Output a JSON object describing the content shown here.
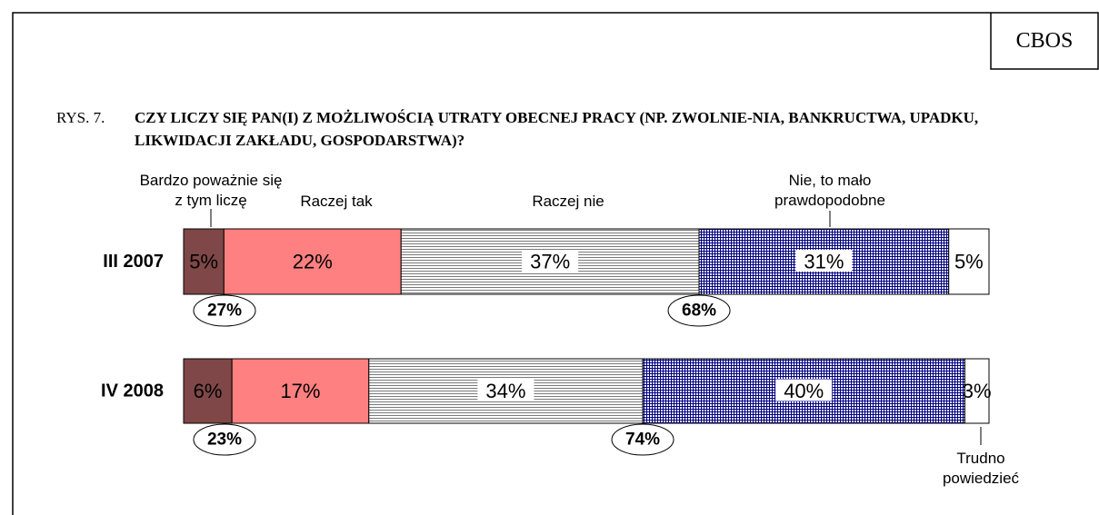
{
  "source": "CBOS",
  "chart_data": {
    "type": "stacked-bar-horizontal",
    "figure_label": "RYS. 7.",
    "title": "CZY LICZY SIĘ PAN(I) Z MOŻLIWOŚCIĄ UTRATY OBECNEJ PRACY (NP. ZWOLNIE-NIA, BANKRUCTWA, UPADKU, LIKWIDACJI ZAKŁADU, GOSPODARSTWA)?",
    "categories": [
      "III 2007",
      "IV 2008"
    ],
    "xlim": [
      0,
      100
    ],
    "series": [
      {
        "name": "Bardzo poważnie się z tym liczę",
        "color": "#7f4747",
        "values": [
          5,
          6
        ],
        "value_labels": [
          "5%",
          "6%"
        ]
      },
      {
        "name": "Raczej tak",
        "color": "#ff8080",
        "values": [
          22,
          17
        ],
        "value_labels": [
          "22%",
          "17%"
        ]
      },
      {
        "name": "Raczej nie",
        "color": "#808080",
        "pattern": "horizontal-lines",
        "values": [
          37,
          34
        ],
        "value_labels": [
          "37%",
          "34%"
        ]
      },
      {
        "name": "Nie, to mało prawdopodobne",
        "color": "#000080",
        "pattern": "grid",
        "values": [
          31,
          40
        ],
        "value_labels": [
          "31%",
          "40%"
        ]
      },
      {
        "name": "Trudno powiedzieć",
        "color": "#ffffff",
        "values": [
          5,
          3
        ],
        "value_labels": [
          "5%",
          "3%"
        ]
      }
    ],
    "annotations": [
      [
        "27%",
        "68%"
      ],
      [
        "23%",
        "74%"
      ]
    ]
  }
}
